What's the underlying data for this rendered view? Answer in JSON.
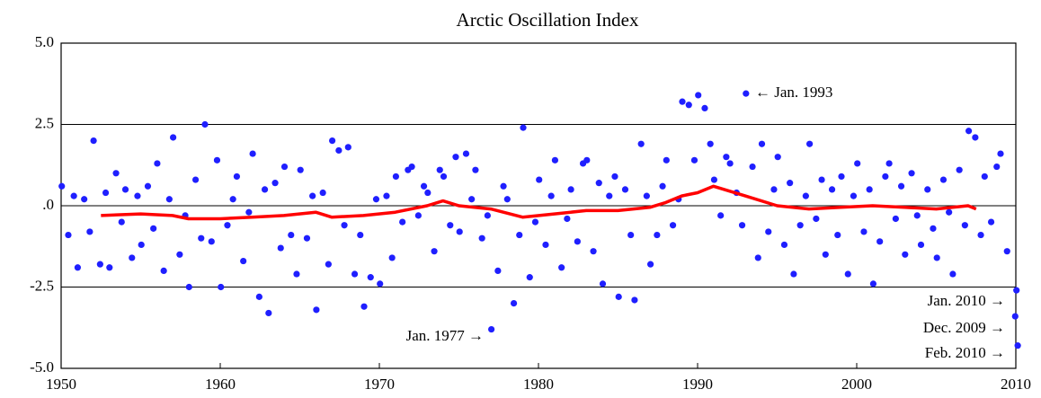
{
  "chart_data": {
    "type": "scatter",
    "title": "Arctic Oscillation Index",
    "xlim": [
      1950,
      2010
    ],
    "xticks": [
      1950,
      1960,
      1970,
      1980,
      1990,
      2000,
      2010
    ],
    "ylim": [
      -5,
      5
    ],
    "yticks": [
      {
        "value": -5,
        "label": "-5.0"
      },
      {
        "value": -2.5,
        "label": "-2.5"
      },
      {
        "value": 0,
        "label": ".0"
      },
      {
        "value": 2.5,
        "label": "2.5"
      },
      {
        "value": 5,
        "label": "5.0"
      }
    ],
    "grid": true,
    "annotations": [
      "← Jan. 1993",
      "Jan. 1977 →",
      "Jan. 2010 →",
      "Dec. 2009 →",
      "Feb. 2010 →"
    ],
    "series": [
      {
        "type": "scatter",
        "color": "#1f1fff",
        "x": [
          1950.04,
          1950.45,
          1950.8,
          1951.04,
          1951.45,
          1951.8,
          1952.04,
          1952.45,
          1952.8,
          1953.04,
          1953.45,
          1953.8,
          1954.04,
          1954.45,
          1954.8,
          1955.04,
          1955.45,
          1955.8,
          1956.04,
          1956.45,
          1956.8,
          1957.04,
          1957.45,
          1957.8,
          1958.04,
          1958.45,
          1958.8,
          1959.04,
          1959.45,
          1959.8,
          1960.04,
          1960.45,
          1960.8,
          1961.04,
          1961.45,
          1961.8,
          1962.04,
          1962.45,
          1962.8,
          1963.04,
          1963.45,
          1963.8,
          1964.04,
          1964.45,
          1964.8,
          1965.04,
          1965.45,
          1965.8,
          1966.04,
          1966.45,
          1966.8,
          1967.04,
          1967.45,
          1967.8,
          1968.04,
          1968.45,
          1968.8,
          1969.04,
          1969.45,
          1969.8,
          1970.04,
          1970.45,
          1970.8,
          1971.04,
          1971.45,
          1971.8,
          1972.04,
          1972.45,
          1972.8,
          1973.04,
          1973.45,
          1973.8,
          1974.04,
          1974.45,
          1974.8,
          1975.04,
          1975.45,
          1975.8,
          1976.04,
          1976.45,
          1976.8,
          1977.04,
          1977.45,
          1977.8,
          1978.04,
          1978.45,
          1978.8,
          1979.04,
          1979.45,
          1979.8,
          1980.04,
          1980.45,
          1980.8,
          1981.04,
          1981.45,
          1981.8,
          1982.04,
          1982.45,
          1982.8,
          1983.04,
          1983.45,
          1983.8,
          1984.04,
          1984.45,
          1984.8,
          1985.04,
          1985.45,
          1985.8,
          1986.04,
          1986.45,
          1986.8,
          1987.04,
          1987.45,
          1987.8,
          1988.04,
          1988.45,
          1988.8,
          1989.04,
          1989.45,
          1989.8,
          1990.04,
          1990.45,
          1990.8,
          1991.04,
          1991.45,
          1991.8,
          1992.04,
          1992.45,
          1992.8,
          1993.04,
          1993.45,
          1993.8,
          1994.04,
          1994.45,
          1994.8,
          1995.04,
          1995.45,
          1995.8,
          1996.04,
          1996.45,
          1996.8,
          1997.04,
          1997.45,
          1997.8,
          1998.04,
          1998.45,
          1998.8,
          1999.04,
          1999.45,
          1999.8,
          2000.04,
          2000.45,
          2000.8,
          2001.04,
          2001.45,
          2001.8,
          2002.04,
          2002.45,
          2002.8,
          2003.04,
          2003.45,
          2003.8,
          2004.04,
          2004.45,
          2004.8,
          2005.04,
          2005.45,
          2005.8,
          2006.04,
          2006.45,
          2006.8,
          2007.04,
          2007.45,
          2007.8,
          2008.04,
          2008.45,
          2008.8,
          2009.04,
          2009.45,
          2009.96,
          2010.04,
          2010.12
        ],
        "values": [
          0.6,
          -0.9,
          0.3,
          -1.9,
          0.2,
          -0.8,
          2.0,
          -1.8,
          0.4,
          -1.9,
          1.0,
          -0.5,
          0.5,
          -1.6,
          0.3,
          -1.2,
          0.6,
          -0.7,
          1.3,
          -2.0,
          0.2,
          2.1,
          -1.5,
          -0.3,
          -2.5,
          0.8,
          -1.0,
          2.5,
          -1.1,
          1.4,
          -2.5,
          -0.6,
          0.2,
          0.9,
          -1.7,
          -0.2,
          1.6,
          -2.8,
          0.5,
          -3.3,
          0.7,
          -1.3,
          1.2,
          -0.9,
          -2.1,
          1.1,
          -1.0,
          0.3,
          -3.2,
          0.4,
          -1.8,
          2.0,
          1.7,
          -0.6,
          1.8,
          -2.1,
          -0.9,
          -3.1,
          -2.2,
          0.2,
          -2.4,
          0.3,
          -1.6,
          0.9,
          -0.5,
          1.1,
          1.2,
          -0.3,
          0.6,
          0.4,
          -1.4,
          1.1,
          0.9,
          -0.6,
          1.5,
          -0.8,
          1.6,
          0.2,
          1.1,
          -1.0,
          -0.3,
          -3.8,
          -2.0,
          0.6,
          0.2,
          -3.0,
          -0.9,
          2.4,
          -2.2,
          -0.5,
          0.8,
          -1.2,
          0.3,
          1.4,
          -1.9,
          -0.4,
          0.5,
          -1.1,
          1.3,
          1.4,
          -1.4,
          0.7,
          -2.4,
          0.3,
          0.9,
          -2.8,
          0.5,
          -0.9,
          -2.9,
          1.9,
          0.3,
          -1.8,
          -0.9,
          0.6,
          1.4,
          -0.6,
          0.2,
          3.2,
          3.1,
          1.4,
          3.4,
          3.0,
          1.9,
          0.8,
          -0.3,
          1.5,
          1.3,
          0.4,
          -0.6,
          3.45,
          1.2,
          -1.6,
          1.9,
          -0.8,
          0.5,
          1.5,
          -1.2,
          0.7,
          -2.1,
          -0.6,
          0.3,
          1.9,
          -0.4,
          0.8,
          -1.5,
          0.5,
          -0.9,
          0.9,
          -2.1,
          0.3,
          1.3,
          -0.8,
          0.5,
          -2.4,
          -1.1,
          0.9,
          1.3,
          -0.4,
          0.6,
          -1.5,
          1.0,
          -0.3,
          -1.2,
          0.5,
          -0.7,
          -1.6,
          0.8,
          -0.2,
          -2.1,
          1.1,
          -0.6,
          2.3,
          2.1,
          -0.9,
          0.9,
          -0.5,
          1.2,
          1.6,
          -1.4,
          -3.4,
          -2.6,
          -4.3
        ]
      },
      {
        "type": "line",
        "color": "#ff0000",
        "x": [
          1952.5,
          1955,
          1957,
          1958,
          1960,
          1962,
          1964,
          1966,
          1967,
          1969,
          1971,
          1973,
          1974,
          1975,
          1977,
          1979,
          1981,
          1983,
          1985,
          1987,
          1988,
          1989,
          1990,
          1991,
          1992,
          1993,
          1995,
          1997,
          1999,
          2001,
          2003,
          2005,
          2007,
          2007.5
        ],
        "values": [
          -0.3,
          -0.25,
          -0.3,
          -0.4,
          -0.4,
          -0.35,
          -0.3,
          -0.2,
          -0.35,
          -0.3,
          -0.2,
          0.0,
          0.15,
          0.0,
          -0.1,
          -0.35,
          -0.25,
          -0.15,
          -0.15,
          -0.05,
          0.1,
          0.3,
          0.4,
          0.6,
          0.45,
          0.3,
          0.0,
          -0.1,
          -0.05,
          0.0,
          -0.05,
          -0.1,
          0.0,
          -0.1
        ]
      }
    ]
  }
}
